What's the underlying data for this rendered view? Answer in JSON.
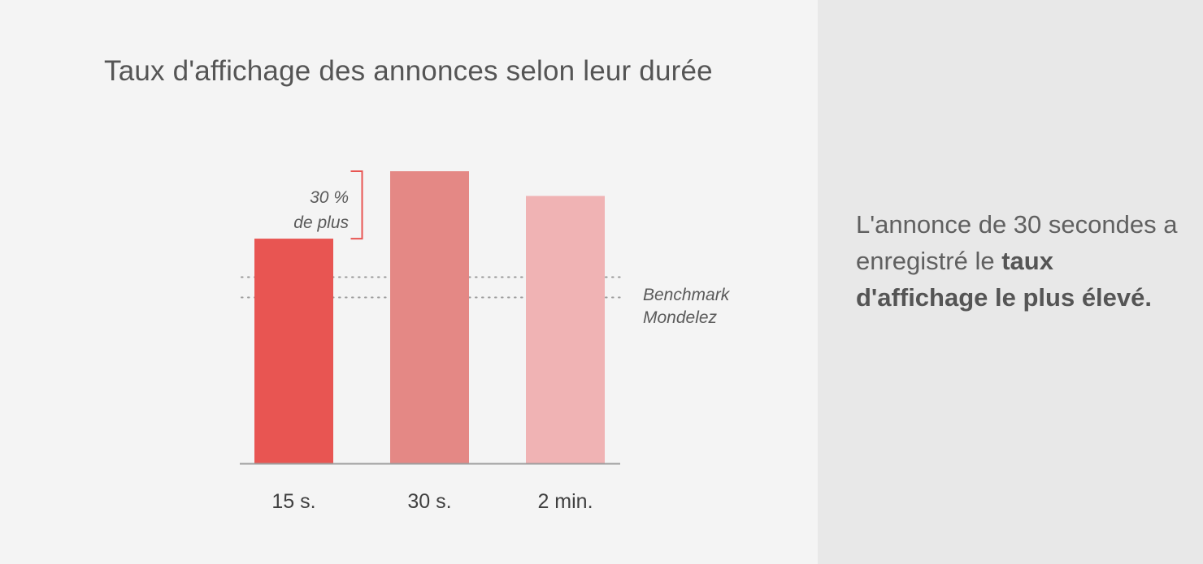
{
  "chart_data": {
    "type": "bar",
    "title": "Taux d'affichage des annonces selon leur durée",
    "categories": [
      "15 s.",
      "30 s.",
      "2 min."
    ],
    "values": [
      1.0,
      1.3,
      1.19
    ],
    "ylim": [
      0,
      1.3
    ],
    "bar_colors": [
      "#e85552",
      "#e48885",
      "#f0b3b4"
    ],
    "grid": false,
    "annotations": {
      "increase": {
        "line1": "30 %",
        "line2": "de plus",
        "from_index": 0,
        "to_index": 1
      },
      "benchmark": {
        "line1": "Benchmark",
        "line2": "Mondelez",
        "value_band": [
          0.74,
          0.83
        ]
      }
    }
  },
  "callout": {
    "text_plain": "L'annonce de 30 secondes a enregistré le ",
    "text_bold": "taux d'affichage le plus élevé."
  },
  "colors": {
    "title": "#555555",
    "axis": "#9e9e9e",
    "bracket": "#e85552",
    "benchmark_dots": "#9a9a9a",
    "left_background": "#f4f4f4",
    "right_background": "#e8e8e8"
  }
}
